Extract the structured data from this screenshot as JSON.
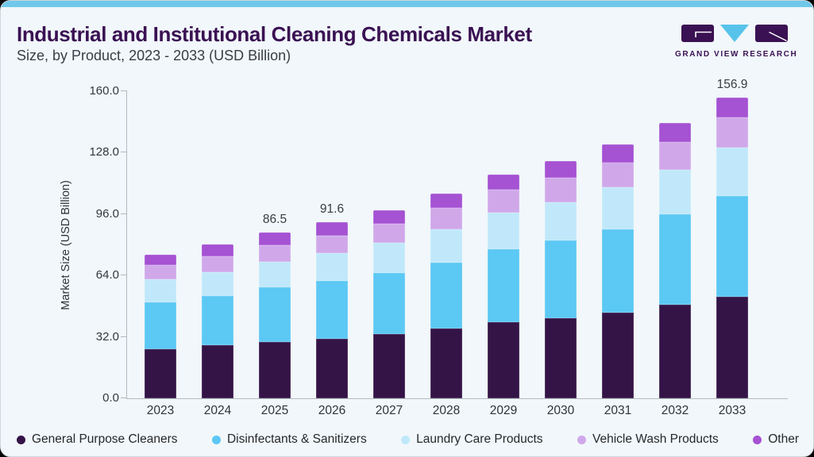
{
  "card": {
    "title": "Industrial and Institutional Cleaning Chemicals Market",
    "subtitle": "Size, by Product, 2023 - 2033 (USD Billion)",
    "brand_name": "GRAND VIEW RESEARCH"
  },
  "colors": {
    "top_strip": "#6fc8ea",
    "card_background": "#f1f7fa",
    "title_purple": "#3a1153",
    "axis_line": "#b3bac0",
    "logo_tile": "#3a1153",
    "logo_triangle": "#58c3ea"
  },
  "chart_data": {
    "type": "bar",
    "stacked": true,
    "title": "Industrial and Institutional Cleaning Chemicals Market",
    "subtitle": "Size, by Product, 2023 - 2033 (USD Billion)",
    "xlabel": "",
    "ylabel": "Market Size (USD Billion)",
    "ylim": [
      0,
      160
    ],
    "yticks": [
      0,
      32,
      64,
      96,
      128,
      160
    ],
    "ytick_labels": [
      "0.0",
      "32.0",
      "64.0",
      "96.0",
      "128.0",
      "160.0"
    ],
    "grid": false,
    "legend_position": "bottom",
    "categories": [
      "2023",
      "2024",
      "2025",
      "2026",
      "2027",
      "2028",
      "2029",
      "2030",
      "2031",
      "2032",
      "2033"
    ],
    "series": [
      {
        "name": "General Purpose Cleaners",
        "color": "#341447",
        "values": [
          25.7,
          27.5,
          29.5,
          31.2,
          33.7,
          36.4,
          39.7,
          41.8,
          44.7,
          48.6,
          53.0
        ]
      },
      {
        "name": "Disinfectants & Sanitizers",
        "color": "#5cc8f4",
        "values": [
          24.5,
          25.9,
          28.3,
          30.0,
          31.7,
          34.5,
          38.1,
          40.4,
          43.4,
          47.4,
          52.3
        ]
      },
      {
        "name": "Laundry Care Products",
        "color": "#c0e8fa",
        "values": [
          11.7,
          12.5,
          13.4,
          14.5,
          15.8,
          17.2,
          18.8,
          19.8,
          21.9,
          23.1,
          25.2
        ]
      },
      {
        "name": "Vehicle Wash Products",
        "color": "#d0a8ea",
        "values": [
          7.6,
          8.2,
          8.6,
          9.0,
          9.8,
          11.3,
          12.0,
          12.8,
          12.9,
          14.3,
          15.9
        ]
      },
      {
        "name": "Other",
        "color": "#a552d3",
        "values": [
          5.5,
          6.3,
          6.7,
          6.9,
          7.0,
          7.3,
          8.1,
          8.7,
          9.5,
          10.1,
          10.5
        ]
      }
    ],
    "totals": [
      75.0,
      80.4,
      86.5,
      91.6,
      98.0,
      106.7,
      116.7,
      123.5,
      132.4,
      143.5,
      156.9
    ],
    "value_labels": [
      {
        "category": "2025",
        "text": "86.5"
      },
      {
        "category": "2026",
        "text": "91.6"
      },
      {
        "category": "2033",
        "text": "156.9"
      }
    ]
  }
}
